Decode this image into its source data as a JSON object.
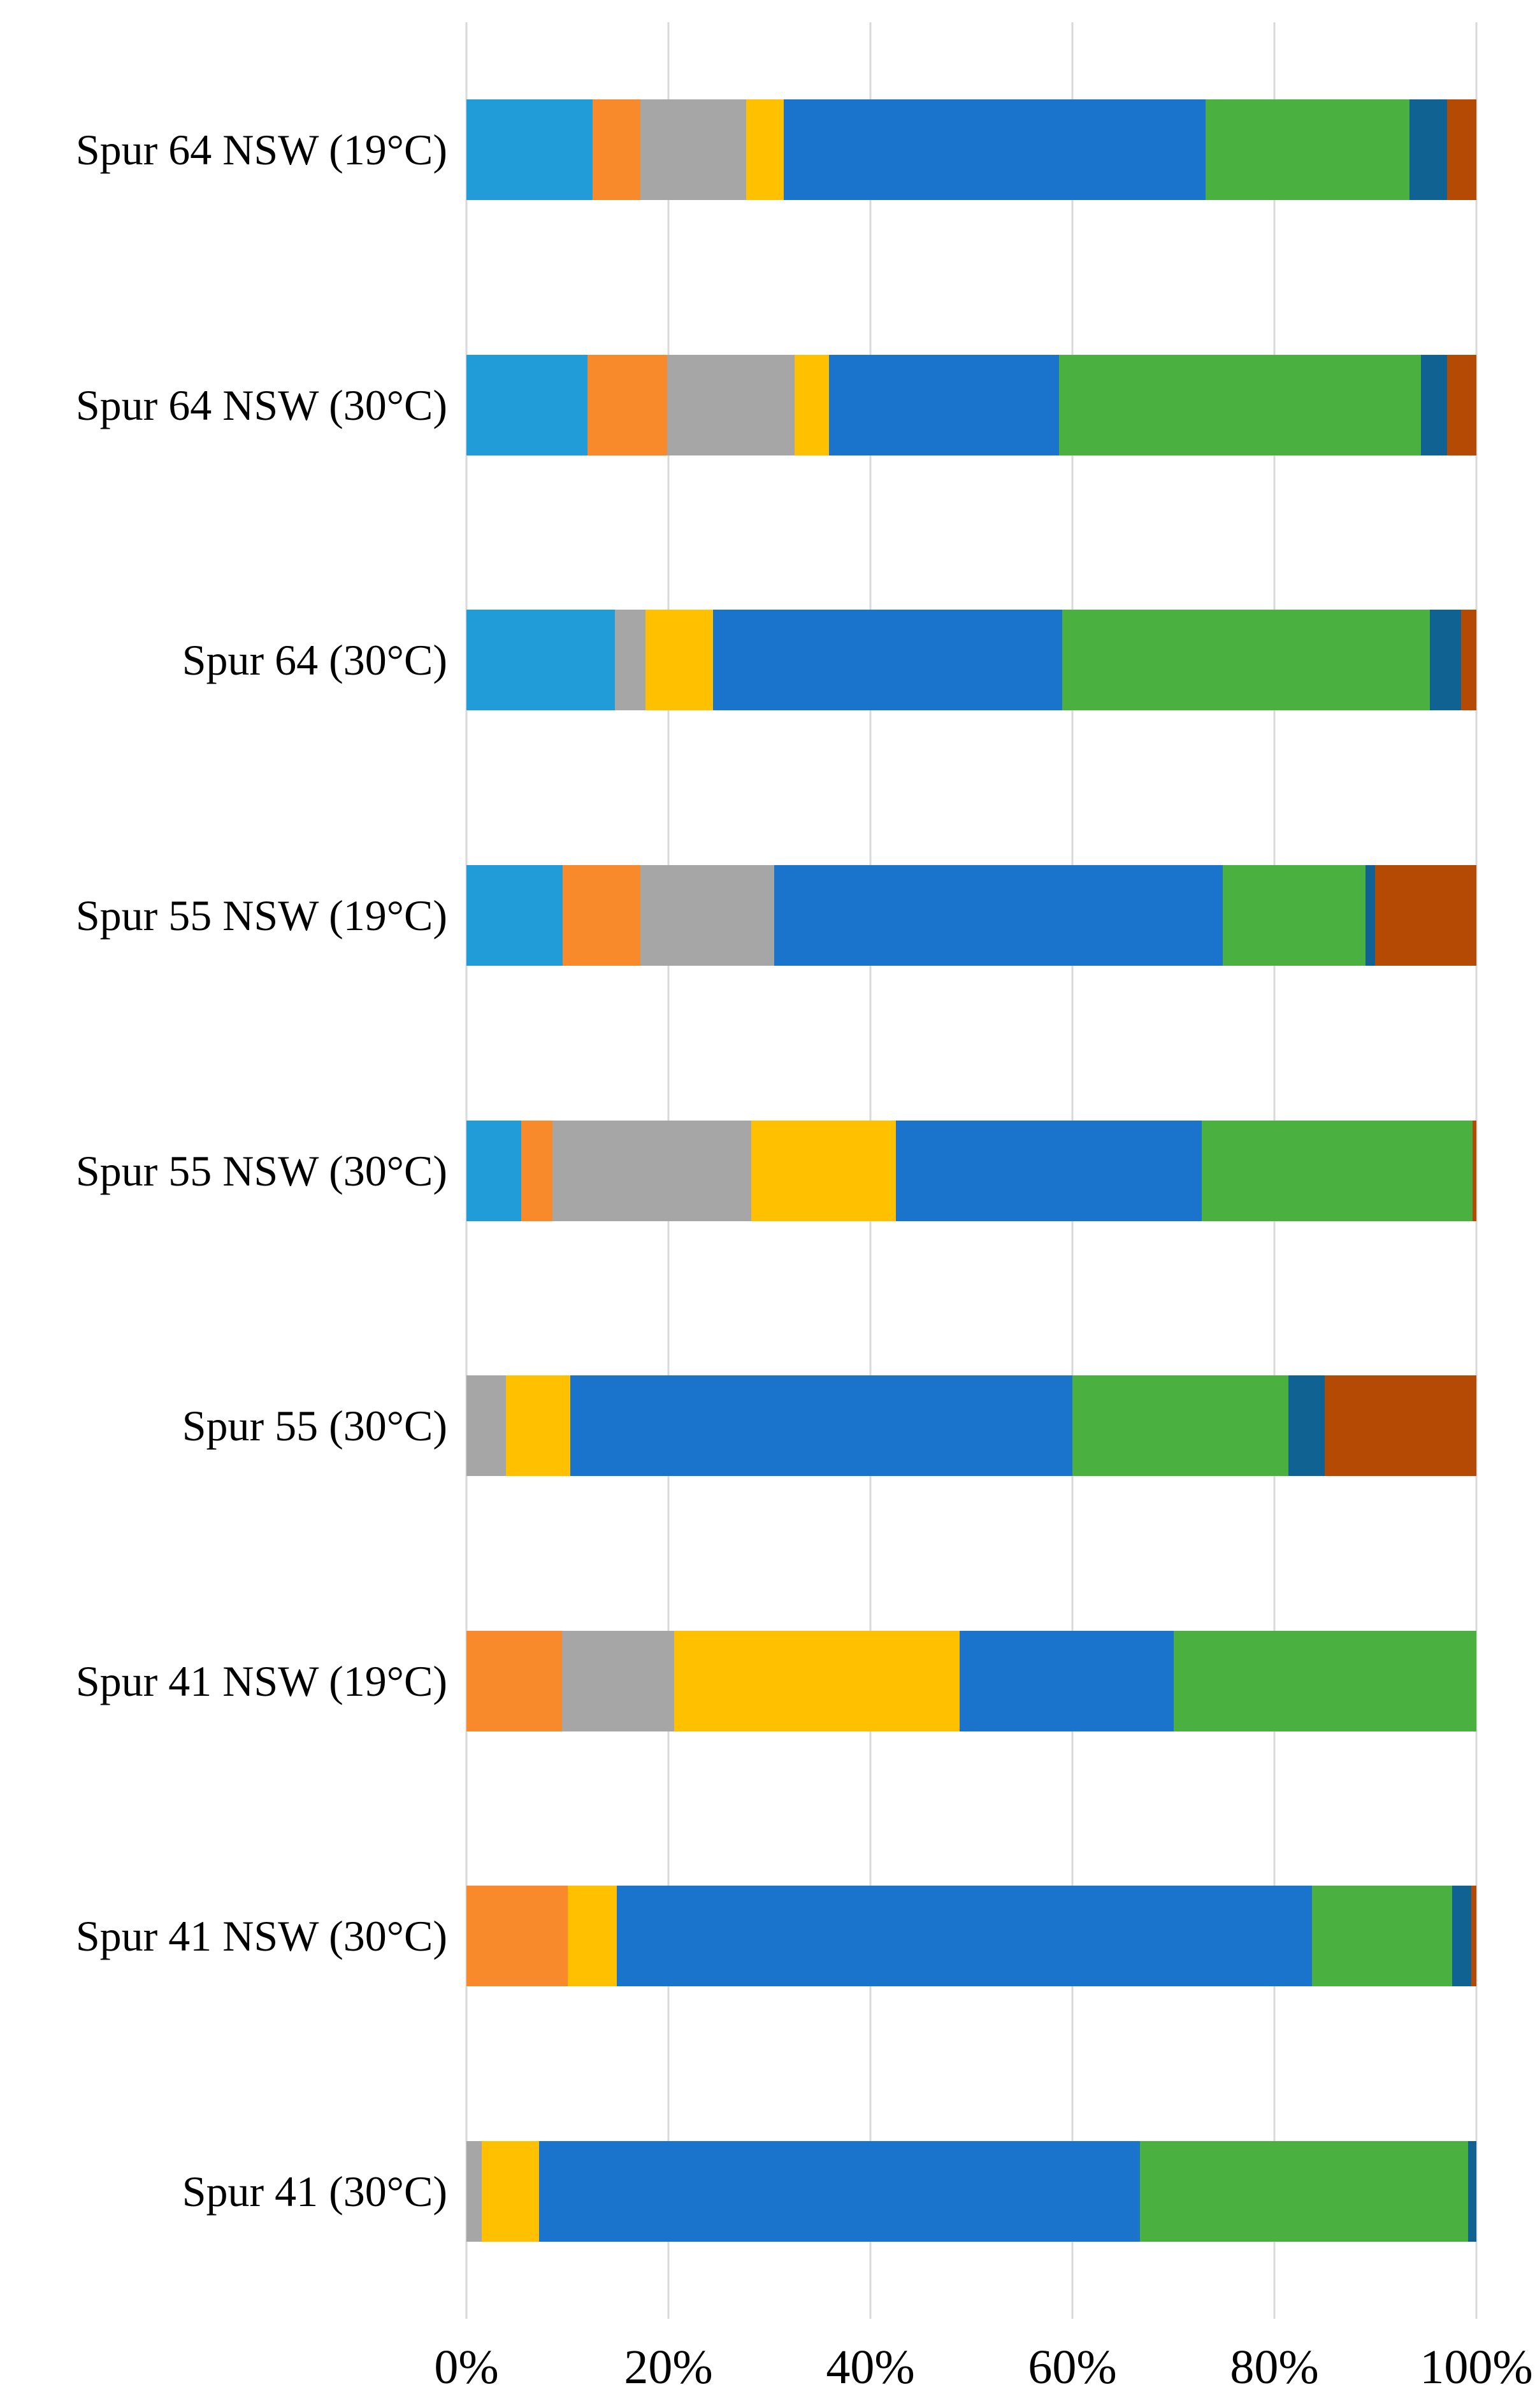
{
  "chart_data": {
    "type": "bar",
    "variant": "horizontal-100pct-stacked",
    "title": "",
    "xlabel": "",
    "ylabel": "",
    "xlim": [
      0,
      100
    ],
    "x_ticks": [
      "0%",
      "20%",
      "40%",
      "60%",
      "80%",
      "100%"
    ],
    "grid": "vertical-only",
    "legend_position": "none",
    "unit": "percent",
    "categories": [
      "Spur 64 NSW (19°C)",
      "Spur 64 NSW (30°C)",
      "Spur 64 (30°C)",
      "Spur 55 NSW (19°C)",
      "Spur 55 NSW (30°C)",
      "Spur 55 (30°C)",
      "Spur 41 NSW (19°C)",
      "Spur 41 NSW (30°C)",
      "Spur 41 (30°C)"
    ],
    "series": [
      {
        "name": "light-blue",
        "color": "#219CD8",
        "values": [
          12.5,
          12.0,
          14.7,
          9.5,
          5.4,
          0,
          0,
          0,
          0
        ]
      },
      {
        "name": "orange",
        "color": "#F98A2B",
        "values": [
          4.7,
          7.9,
          0,
          7.7,
          3.1,
          0,
          9.5,
          10.0,
          0
        ]
      },
      {
        "name": "gray",
        "color": "#A6A6A6",
        "values": [
          10.5,
          12.6,
          3.0,
          13.3,
          19.7,
          3.9,
          11.1,
          0,
          1.5
        ]
      },
      {
        "name": "yellow",
        "color": "#FFC000",
        "values": [
          3.7,
          3.4,
          6.7,
          0,
          14.3,
          6.4,
          28.3,
          4.9,
          5.7
        ]
      },
      {
        "name": "blue",
        "color": "#1B74CB",
        "values": [
          41.8,
          22.8,
          34.6,
          44.4,
          30.3,
          49.7,
          21.3,
          68.8,
          59.5
        ]
      },
      {
        "name": "green",
        "color": "#4AB140",
        "values": [
          20.2,
          35.8,
          36.4,
          14.1,
          26.8,
          21.4,
          30.0,
          13.9,
          32.5
        ]
      },
      {
        "name": "dark-blue",
        "color": "#0F6292",
        "values": [
          3.7,
          2.6,
          3.1,
          1.0,
          0,
          3.6,
          0,
          1.9,
          0.8
        ]
      },
      {
        "name": "brown",
        "color": "#B44A04",
        "values": [
          2.9,
          2.9,
          1.5,
          10.0,
          0.4,
          15.0,
          0,
          0.5,
          0
        ]
      }
    ]
  },
  "colors": {
    "background": "#FFFFFF",
    "gridline": "#D9D9D9",
    "text": "#000000"
  }
}
